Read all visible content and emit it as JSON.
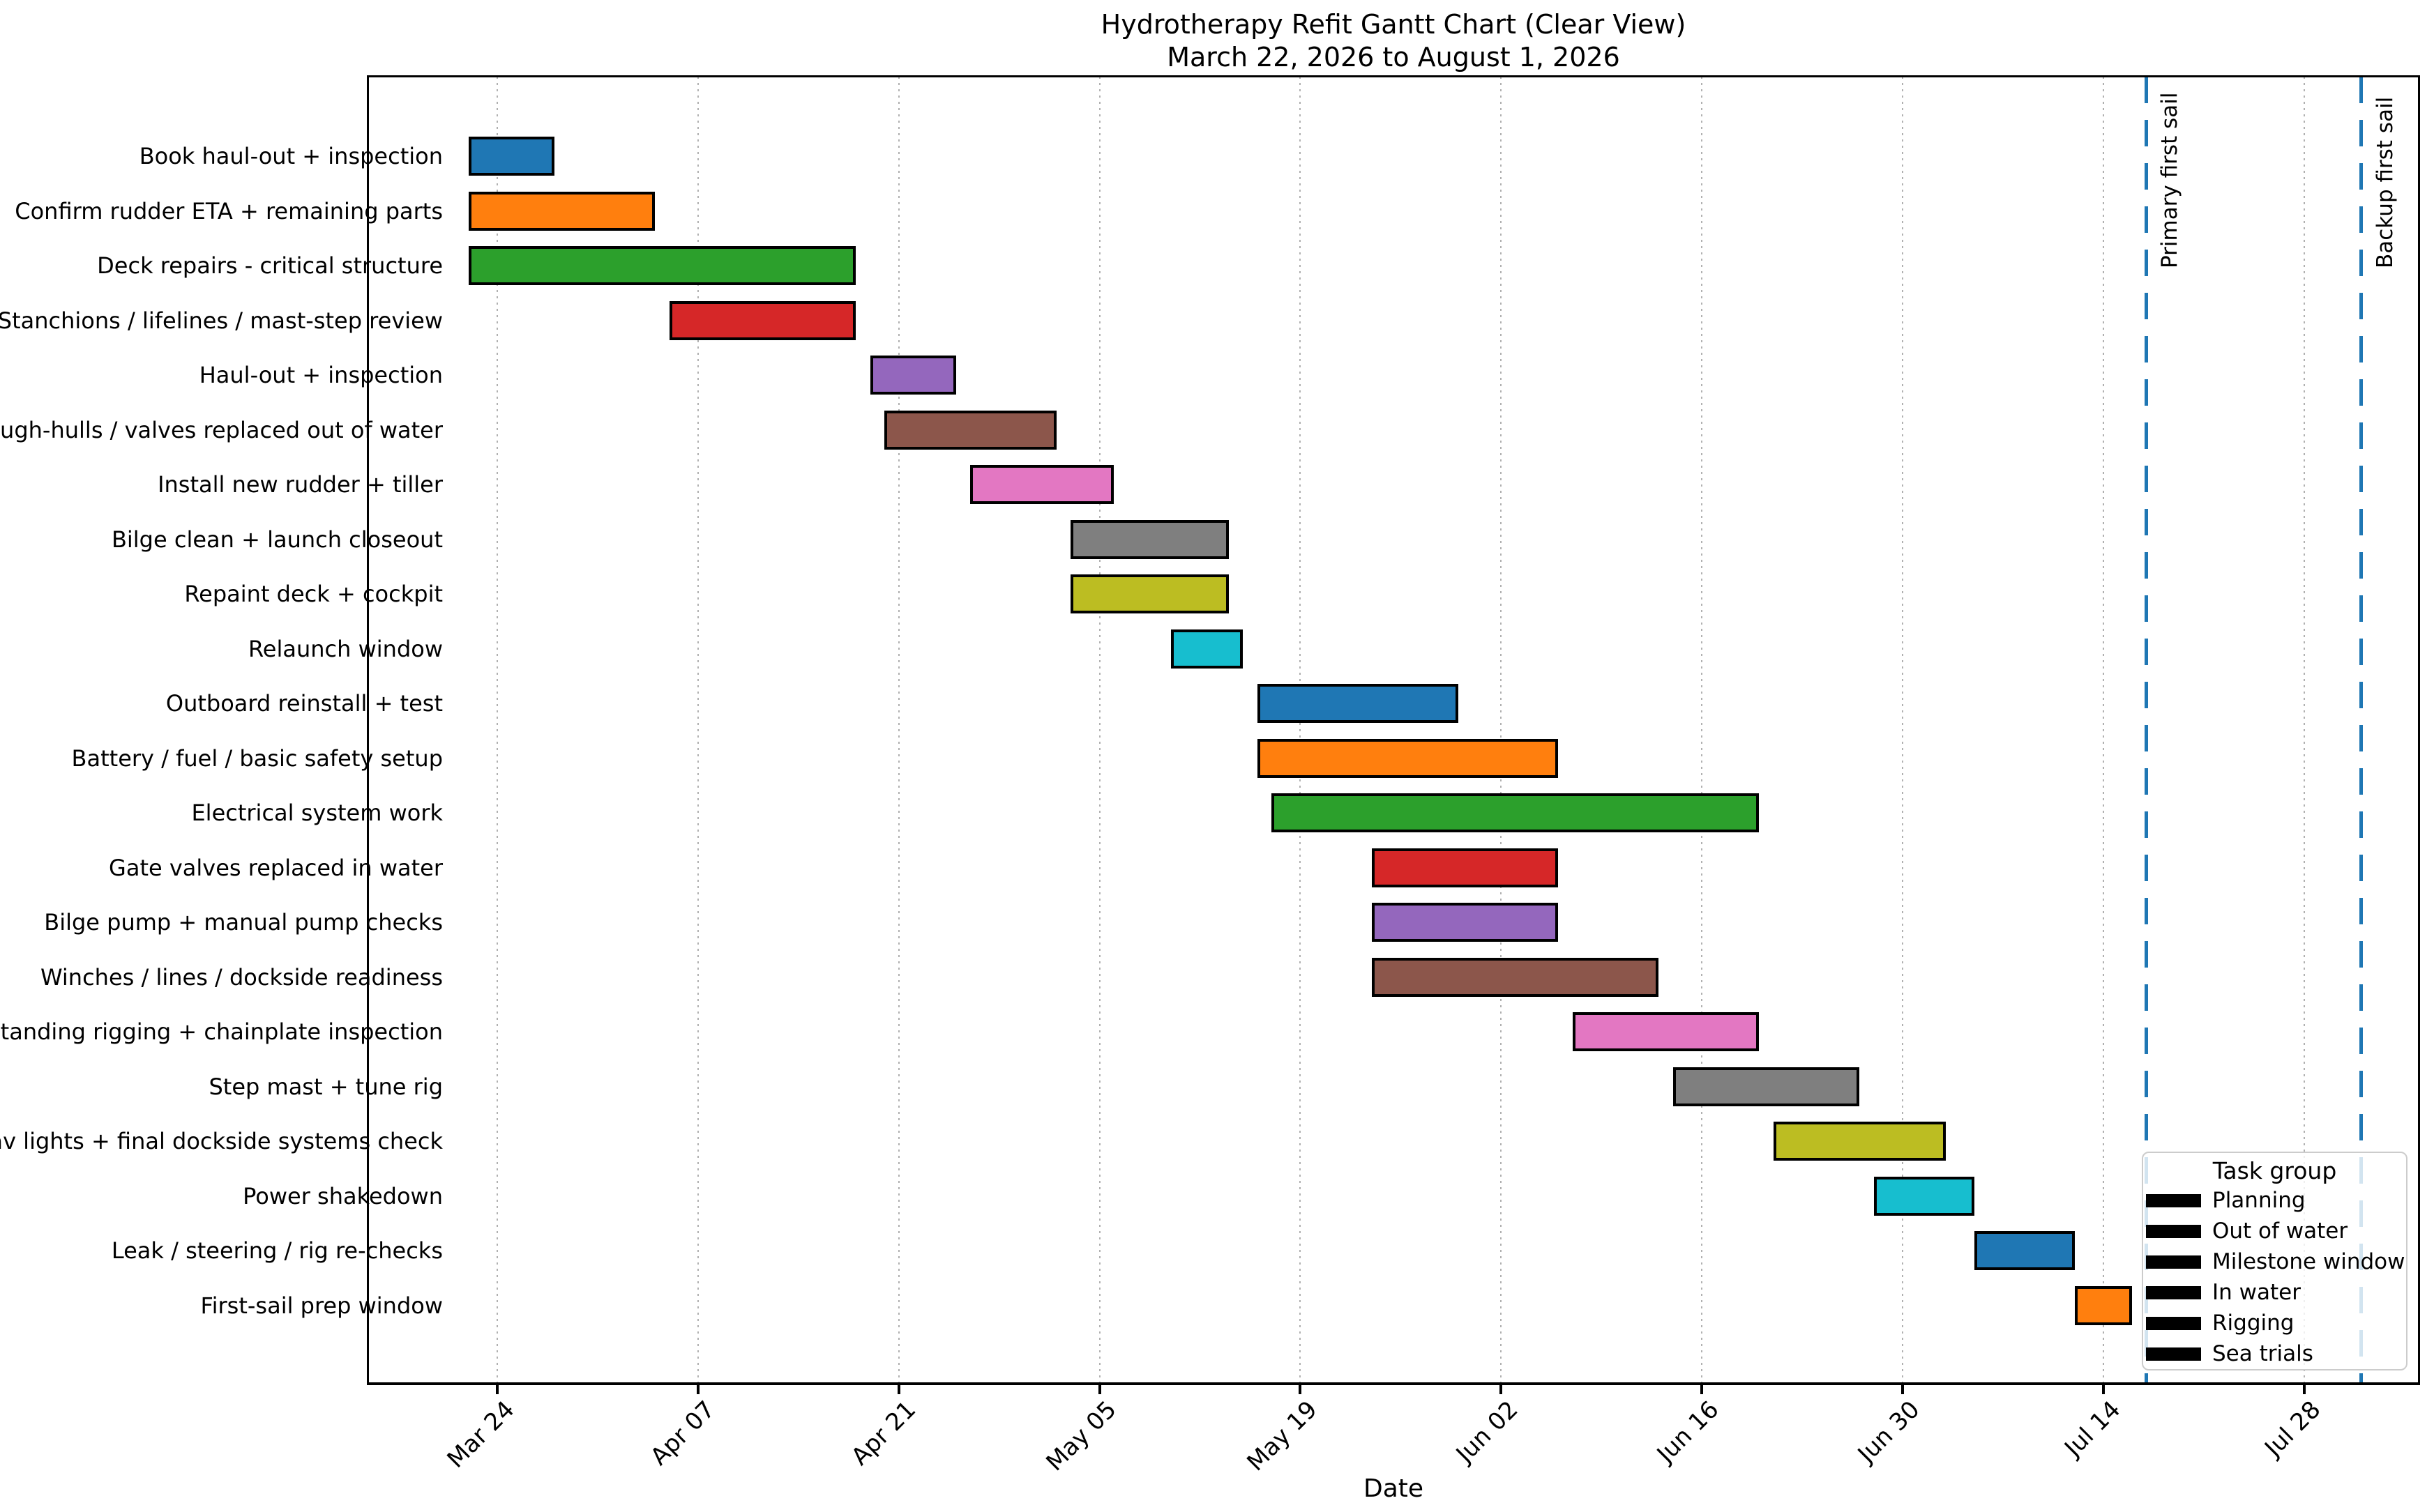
{
  "title": {
    "line1": "Hydrotherapy Refit Gantt Chart (Clear View)",
    "line2": "March 22, 2026 to August 1, 2026"
  },
  "x_axis_title": "Date",
  "legend": {
    "title": "Task group",
    "swatch_color": "#000000",
    "entries": [
      "Planning",
      "Out of water",
      "Milestone window",
      "In water",
      "Rigging",
      "Sea trials"
    ]
  },
  "chart_data": {
    "type": "bar",
    "subtype": "gantt",
    "title": "Hydrotherapy Refit Gantt Chart (Clear View)",
    "subtitle": "March 22, 2026 to August 1, 2026",
    "xlabel": "Date",
    "grid": "vertical-dotted",
    "legend_position": "lower right",
    "x_range": {
      "start": "2026-03-15",
      "end": "2026-08-05",
      "total_days": 143
    },
    "x_ticks": [
      {
        "label": "Mar 24",
        "day": 9
      },
      {
        "label": "Apr 07",
        "day": 23
      },
      {
        "label": "Apr 21",
        "day": 37
      },
      {
        "label": "May 05",
        "day": 51
      },
      {
        "label": "May 19",
        "day": 65
      },
      {
        "label": "Jun 02",
        "day": 79
      },
      {
        "label": "Jun 16",
        "day": 93
      },
      {
        "label": "Jun 30",
        "day": 107
      },
      {
        "label": "Jul 14",
        "day": 121
      },
      {
        "label": "Jul 28",
        "day": 135
      }
    ],
    "milestone_lines": [
      {
        "label": "Primary first sail",
        "date": "2026-07-17",
        "day": 124,
        "color": "#1f77b4",
        "style": "dashed"
      },
      {
        "label": "Backup first sail",
        "date": "2026-08-01",
        "day": 139,
        "color": "#1f77b4",
        "style": "dashed"
      }
    ],
    "tasks": [
      {
        "label": "Book haul-out + inspection",
        "start": "2026-03-22",
        "end": "2026-03-28",
        "start_day": 7,
        "end_day": 13,
        "color": "#1f77b4"
      },
      {
        "label": "Confirm rudder ETA + remaining parts",
        "start": "2026-03-22",
        "end": "2026-04-04",
        "start_day": 7,
        "end_day": 20,
        "color": "#ff7f0e"
      },
      {
        "label": "Deck repairs - critical structure",
        "start": "2026-03-22",
        "end": "2026-04-18",
        "start_day": 7,
        "end_day": 34,
        "color": "#2ca02c"
      },
      {
        "label": "Stanchions / lifelines / mast-step review",
        "start": "2026-04-05",
        "end": "2026-04-18",
        "start_day": 21,
        "end_day": 34,
        "color": "#d62728"
      },
      {
        "label": "Haul-out + inspection",
        "start": "2026-04-19",
        "end": "2026-04-25",
        "start_day": 35,
        "end_day": 41,
        "color": "#9467bd"
      },
      {
        "label": "Through-hulls / valves replaced out of water",
        "start": "2026-04-20",
        "end": "2026-05-02",
        "start_day": 36,
        "end_day": 48,
        "color": "#8c564b"
      },
      {
        "label": "Install new rudder + tiller",
        "start": "2026-04-26",
        "end": "2026-05-06",
        "start_day": 42,
        "end_day": 52,
        "color": "#e377c2"
      },
      {
        "label": "Bilge clean + launch closeout",
        "start": "2026-05-03",
        "end": "2026-05-14",
        "start_day": 49,
        "end_day": 60,
        "color": "#7f7f7f"
      },
      {
        "label": "Repaint deck + cockpit",
        "start": "2026-05-03",
        "end": "2026-05-14",
        "start_day": 49,
        "end_day": 60,
        "color": "#bcbd22"
      },
      {
        "label": "Relaunch window",
        "start": "2026-05-10",
        "end": "2026-05-15",
        "start_day": 56,
        "end_day": 61,
        "color": "#17becf"
      },
      {
        "label": "Outboard reinstall + test",
        "start": "2026-05-16",
        "end": "2026-05-30",
        "start_day": 62,
        "end_day": 76,
        "color": "#1f77b4"
      },
      {
        "label": "Battery / fuel / basic safety setup",
        "start": "2026-05-16",
        "end": "2026-06-06",
        "start_day": 62,
        "end_day": 83,
        "color": "#ff7f0e"
      },
      {
        "label": "Electrical system work",
        "start": "2026-05-17",
        "end": "2026-06-20",
        "start_day": 63,
        "end_day": 97,
        "color": "#2ca02c"
      },
      {
        "label": "Gate valves replaced in water",
        "start": "2026-05-24",
        "end": "2026-06-06",
        "start_day": 70,
        "end_day": 83,
        "color": "#d62728"
      },
      {
        "label": "Bilge pump + manual pump checks",
        "start": "2026-05-24",
        "end": "2026-06-06",
        "start_day": 70,
        "end_day": 83,
        "color": "#9467bd"
      },
      {
        "label": "Winches / lines / dockside readiness",
        "start": "2026-05-24",
        "end": "2026-06-13",
        "start_day": 70,
        "end_day": 90,
        "color": "#8c564b"
      },
      {
        "label": "Standing rigging + chainplate inspection",
        "start": "2026-06-07",
        "end": "2026-06-20",
        "start_day": 84,
        "end_day": 97,
        "color": "#e377c2"
      },
      {
        "label": "Step mast + tune rig",
        "start": "2026-06-14",
        "end": "2026-06-27",
        "start_day": 91,
        "end_day": 104,
        "color": "#7f7f7f"
      },
      {
        "label": "Nav lights + final dockside systems check",
        "start": "2026-06-21",
        "end": "2026-07-03",
        "start_day": 98,
        "end_day": 110,
        "color": "#bcbd22"
      },
      {
        "label": "Power shakedown",
        "start": "2026-06-28",
        "end": "2026-07-05",
        "start_day": 105,
        "end_day": 112,
        "color": "#17becf"
      },
      {
        "label": "Leak / steering / rig re-checks",
        "start": "2026-07-05",
        "end": "2026-07-12",
        "start_day": 112,
        "end_day": 119,
        "color": "#1f77b4"
      },
      {
        "label": "First-sail prep window",
        "start": "2026-07-12",
        "end": "2026-07-16",
        "start_day": 119,
        "end_day": 123,
        "color": "#ff7f0e"
      }
    ]
  }
}
